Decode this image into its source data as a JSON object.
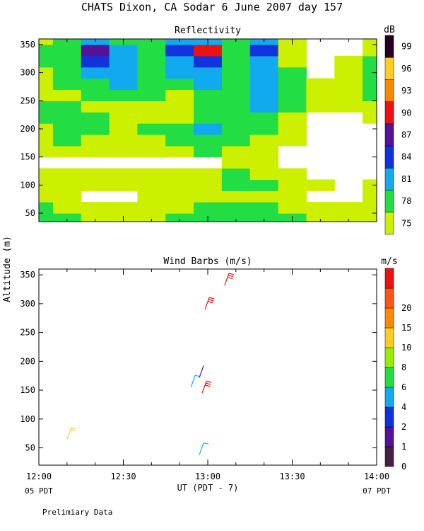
{
  "header": {
    "title": "CHATS Dixon, CA  Sodar   6 June 2007  day 157"
  },
  "footer": {
    "note": "Prelimiary Data"
  },
  "chart_data": [
    {
      "type": "heatmap",
      "title": "Reflectivity",
      "xlabel": "",
      "ylabel": "",
      "x_range": [
        "12:00",
        "14:00"
      ],
      "ylim": [
        35,
        360
      ],
      "y_ticks": [
        50,
        100,
        150,
        200,
        250,
        300,
        350
      ],
      "x_ticks": [
        "12:00",
        "12:30",
        "13:00",
        "13:30",
        "14:00"
      ],
      "colorbar": {
        "unit": "dB",
        "levels": [
          75,
          78,
          81,
          84,
          87,
          90,
          93,
          96,
          99
        ],
        "colors": [
          "#ccf000",
          "#22dd44",
          "#11aaee",
          "#1133dd",
          "#551199",
          "#ee1111",
          "#ff8800",
          "#ffcc22",
          "#220022"
        ]
      },
      "x_minutes": [
        0,
        10,
        20,
        30,
        40,
        50,
        60,
        70,
        80,
        90,
        100,
        110,
        120
      ],
      "y_altitudes": [
        40,
        60,
        80,
        100,
        120,
        140,
        160,
        180,
        200,
        220,
        240,
        260,
        280,
        300,
        320,
        340,
        360
      ],
      "values": [
        [
          79,
          78,
          77,
          77,
          77,
          78,
          79,
          79,
          79,
          78,
          77,
          77,
          77
        ],
        [
          78,
          77,
          76,
          76,
          77,
          77,
          78,
          79,
          79,
          77,
          76,
          76,
          76
        ],
        [
          76,
          76,
          74,
          73,
          76,
          77,
          77,
          77,
          77,
          75,
          73,
          74,
          75
        ],
        [
          77,
          77,
          76,
          75,
          76,
          76,
          77,
          79,
          78,
          77,
          75,
          74,
          76
        ],
        [
          77,
          77,
          76,
          75,
          75,
          75,
          76,
          78,
          77,
          75,
          73,
          73,
          74
        ],
        [
          74,
          74,
          73,
          72,
          72,
          73,
          74,
          75,
          76,
          74,
          72,
          71,
          72
        ],
        [
          75,
          76,
          76,
          75,
          76,
          77,
          78,
          76,
          75,
          74,
          72,
          71,
          72
        ],
        [
          76,
          78,
          77,
          76,
          77,
          78,
          79,
          78,
          77,
          75,
          73,
          72,
          73
        ],
        [
          77,
          79,
          78,
          77,
          78,
          80,
          82,
          79,
          79,
          76,
          74,
          73,
          74
        ],
        [
          78,
          79,
          78,
          76,
          75,
          77,
          79,
          79,
          80,
          77,
          74,
          74,
          76
        ],
        [
          78,
          78,
          77,
          75,
          76,
          77,
          80,
          79,
          81,
          78,
          75,
          75,
          77
        ],
        [
          77,
          77,
          79,
          80,
          78,
          77,
          79,
          78,
          82,
          79,
          75,
          76,
          80
        ],
        [
          76,
          79,
          80,
          82,
          80,
          79,
          81,
          79,
          81,
          78,
          75,
          77,
          79
        ],
        [
          77,
          80,
          82,
          81,
          80,
          81,
          83,
          80,
          82,
          78,
          74,
          76,
          79
        ],
        [
          79,
          80,
          84,
          82,
          79,
          82,
          85,
          80,
          82,
          77,
          74,
          75,
          78
        ],
        [
          78,
          80,
          89,
          81,
          79,
          84,
          91,
          80,
          84,
          77,
          74,
          74,
          77
        ],
        [
          77,
          79,
          82,
          80,
          79,
          81,
          83,
          80,
          81,
          76,
          74,
          74,
          76
        ]
      ]
    },
    {
      "type": "scatter",
      "title": "Wind Barbs (m/s)",
      "xlabel": "UT  (PDT - 7)",
      "ylabel": "Altitude (m)",
      "ylim": [
        20,
        360
      ],
      "y_ticks": [
        50,
        100,
        150,
        200,
        250,
        300,
        350
      ],
      "x_ticks": [
        "12:00",
        "12:30",
        "13:00",
        "13:30",
        "14:00"
      ],
      "x_sublabels": {
        "left": "05 PDT",
        "right": "07 PDT"
      },
      "colorbar": {
        "unit": "m/s",
        "levels": [
          0,
          1,
          2,
          4,
          6,
          8,
          10,
          15,
          20
        ],
        "colors": [
          "#442244",
          "#551199",
          "#1133dd",
          "#11aaee",
          "#22dd44",
          "#99ee00",
          "#ffcc22",
          "#ff8800",
          "#ff5511",
          "#ee1111"
        ]
      },
      "barbs": [
        {
          "minute": 10,
          "altitude": 65,
          "speed": 9,
          "color": "#ffcc22"
        },
        {
          "minute": 57,
          "altitude": 38,
          "speed": 3,
          "color": "#11aaee"
        },
        {
          "minute": 54,
          "altitude": 155,
          "speed": 3,
          "color": "#11aaee"
        },
        {
          "minute": 57,
          "altitude": 172,
          "speed": 1,
          "color": "#551199"
        },
        {
          "minute": 58,
          "altitude": 145,
          "speed": 16,
          "color": "#ee1111"
        },
        {
          "minute": 59,
          "altitude": 290,
          "speed": 16,
          "color": "#ee1111"
        },
        {
          "minute": 66,
          "altitude": 332,
          "speed": 21,
          "color": "#ee1111"
        }
      ]
    }
  ]
}
